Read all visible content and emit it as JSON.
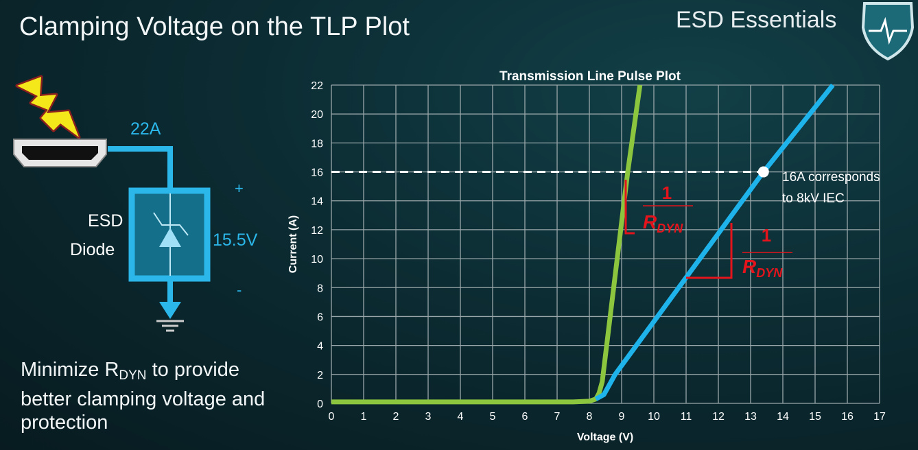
{
  "slide": {
    "title": "Clamping Voltage on the TLP Plot",
    "brand": "ESD Essentials",
    "bottom_text": {
      "pre": "Minimize R",
      "sub": "DYN",
      "post": " to provide better clamping voltage and protection"
    }
  },
  "circuit": {
    "current_label": "22A",
    "device_label_1": "ESD",
    "device_label_2": "Diode",
    "voltage_label": "15.5V",
    "plus": "+",
    "minus": "-",
    "icons": [
      "lightning-icon",
      "hdmi-connector-icon",
      "tvs-diode-icon",
      "ground-icon",
      "shield-heartbeat-icon"
    ],
    "colors": {
      "wire": "#2bb7ea",
      "lightning": "#f5e81a"
    }
  },
  "chart_data": {
    "type": "line",
    "title": "Transmission Line Pulse Plot",
    "xlabel": "Voltage (V)",
    "ylabel": "Current (A)",
    "xlim": [
      0,
      17
    ],
    "ylim": [
      0,
      22
    ],
    "xticks": [
      0,
      1,
      2,
      3,
      4,
      5,
      6,
      7,
      8,
      9,
      10,
      11,
      12,
      13,
      14,
      15,
      16,
      17
    ],
    "yticks": [
      0,
      2,
      4,
      6,
      8,
      10,
      12,
      14,
      16,
      18,
      20,
      22
    ],
    "grid": true,
    "series": [
      {
        "color": "#8cc63f",
        "x": [
          0,
          7.5,
          8.0,
          8.2,
          8.3,
          8.4,
          9.19,
          9.57
        ],
        "y": [
          0.1,
          0.1,
          0.15,
          0.3,
          0.7,
          1.5,
          16,
          22
        ]
      },
      {
        "color": "#1fb3ec",
        "x": [
          8.2,
          8.45,
          8.8,
          13.4,
          15.55
        ],
        "y": [
          0.3,
          0.6,
          2,
          16,
          22
        ]
      }
    ],
    "reference_line": {
      "y": 16,
      "style": "dashed",
      "color": "#ffffff"
    },
    "marker": {
      "x": 13.4,
      "y": 16
    },
    "annotation": {
      "line1": "16A corresponds",
      "line2": "to 8kV IEC"
    },
    "slope_labels": [
      {
        "numerator": "1",
        "denominator": "R",
        "sub": "DYN"
      },
      {
        "numerator": "1",
        "denominator": "R",
        "sub": "DYN"
      }
    ],
    "slope_color": "#e3141b"
  }
}
